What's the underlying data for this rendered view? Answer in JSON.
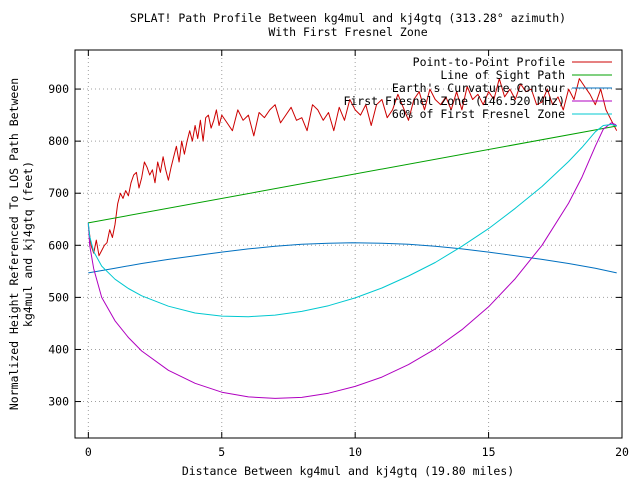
{
  "chart_data": {
    "type": "line",
    "title": "SPLAT! Path Profile Between kg4mul and kj4gtq (313.28° azimuth)",
    "subtitle": "With First Fresnel Zone",
    "xlabel": "Distance Between kg4mul and kj4gtq (19.80 miles)",
    "ylabel": "Normalized Height Referenced To LOS Path Between kg4mul and kj4gtq (feet)",
    "ylabel_lines": [
      "Normalized Height Referenced To LOS Path Between",
      "kg4mul and kj4gtq (feet)"
    ],
    "xlim": [
      -0.5,
      20
    ],
    "ylim": [
      230,
      975
    ],
    "xticks": [
      0,
      5,
      10,
      15,
      20
    ],
    "yticks": [
      300,
      400,
      500,
      600,
      700,
      800,
      900
    ],
    "grid": true,
    "legend_position": "top-right",
    "series": [
      {
        "name": "Point-to-Point Profile",
        "color": "#cc0000",
        "x": [
          0,
          0.1,
          0.2,
          0.3,
          0.4,
          0.5,
          0.6,
          0.7,
          0.8,
          0.9,
          1.0,
          1.1,
          1.2,
          1.3,
          1.4,
          1.5,
          1.6,
          1.7,
          1.8,
          1.9,
          2.0,
          2.1,
          2.2,
          2.3,
          2.4,
          2.5,
          2.6,
          2.7,
          2.8,
          2.9,
          3.0,
          3.1,
          3.2,
          3.3,
          3.4,
          3.5,
          3.6,
          3.7,
          3.8,
          3.9,
          4.0,
          4.1,
          4.2,
          4.3,
          4.4,
          4.5,
          4.6,
          4.7,
          4.8,
          4.9,
          5.0,
          5.2,
          5.4,
          5.6,
          5.8,
          6.0,
          6.2,
          6.4,
          6.6,
          6.8,
          7.0,
          7.2,
          7.4,
          7.6,
          7.8,
          8.0,
          8.2,
          8.4,
          8.6,
          8.8,
          9.0,
          9.2,
          9.4,
          9.6,
          9.8,
          10.0,
          10.2,
          10.4,
          10.6,
          10.8,
          11.0,
          11.2,
          11.4,
          11.6,
          11.8,
          12.0,
          12.2,
          12.4,
          12.6,
          12.8,
          13.0,
          13.2,
          13.4,
          13.6,
          13.8,
          14.0,
          14.2,
          14.4,
          14.6,
          14.8,
          15.0,
          15.2,
          15.4,
          15.6,
          15.8,
          16.0,
          16.2,
          16.4,
          16.6,
          16.8,
          17.0,
          17.2,
          17.4,
          17.6,
          17.8,
          18.0,
          18.2,
          18.4,
          18.6,
          18.8,
          19.0,
          19.2,
          19.4,
          19.6,
          19.8
        ],
        "y": [
          640,
          600,
          585,
          610,
          580,
          590,
          600,
          605,
          630,
          615,
          640,
          680,
          700,
          690,
          705,
          695,
          720,
          735,
          740,
          710,
          730,
          760,
          750,
          735,
          745,
          720,
          760,
          740,
          770,
          745,
          725,
          750,
          770,
          790,
          760,
          800,
          775,
          800,
          820,
          800,
          830,
          805,
          840,
          800,
          845,
          850,
          825,
          840,
          860,
          830,
          850,
          835,
          820,
          860,
          840,
          850,
          810,
          855,
          845,
          860,
          870,
          835,
          850,
          865,
          840,
          845,
          820,
          870,
          860,
          840,
          855,
          820,
          865,
          840,
          880,
          860,
          850,
          870,
          830,
          870,
          880,
          845,
          860,
          890,
          865,
          840,
          880,
          895,
          860,
          900,
          880,
          870,
          885,
          860,
          895,
          860,
          905,
          880,
          890,
          870,
          895,
          880,
          920,
          885,
          900,
          880,
          910,
          895,
          900,
          870,
          875,
          900,
          870,
          885,
          860,
          900,
          880,
          920,
          905,
          890,
          870,
          900,
          860,
          840,
          820
        ]
      },
      {
        "name": "Line of Sight Path",
        "color": "#00a000",
        "x": [
          0,
          19.8
        ],
        "y": [
          643,
          829
        ]
      },
      {
        "name": "Earth's Curvature Contour",
        "color": "#0070c0",
        "x": [
          0,
          1,
          2,
          3,
          4,
          5,
          6,
          7,
          8,
          9,
          9.9,
          11,
          12,
          13,
          14,
          15,
          16,
          17,
          18,
          19,
          19.8
        ],
        "y": [
          547,
          556,
          565,
          573,
          580,
          587,
          593,
          598,
          602,
          604,
          605,
          604,
          602,
          598,
          593,
          587,
          580,
          573,
          565,
          556,
          547
        ]
      },
      {
        "name": "First Fresnel Zone (146.520 MHz)",
        "color": "#b000c0",
        "x": [
          0,
          0.05,
          0.2,
          0.5,
          1,
          1.5,
          2,
          3,
          4,
          5,
          6,
          7,
          8,
          9,
          10,
          11,
          12,
          13,
          14,
          15,
          16,
          17,
          18,
          18.5,
          19,
          19.3,
          19.6,
          19.75,
          19.8
        ],
        "y": [
          643,
          600,
          555,
          500,
          455,
          423,
          397,
          360,
          335,
          318,
          309,
          306,
          308,
          316,
          329,
          347,
          371,
          401,
          438,
          482,
          536,
          600,
          681,
          731,
          790,
          823,
          835,
          832,
          829
        ]
      },
      {
        "name": "60% of First Fresnel Zone",
        "color": "#00c8d0",
        "x": [
          0,
          0.05,
          0.2,
          0.5,
          1,
          1.5,
          2,
          3,
          4,
          5,
          6,
          7,
          8,
          9,
          10,
          11,
          12,
          13,
          14,
          15,
          16,
          17,
          18,
          18.5,
          19,
          19.3,
          19.6,
          19.75,
          19.8
        ],
        "y": [
          643,
          617,
          588,
          560,
          535,
          517,
          503,
          483,
          470,
          464,
          463,
          466,
          473,
          484,
          499,
          518,
          541,
          567,
          598,
          632,
          671,
          713,
          761,
          788,
          818,
          830,
          832,
          830,
          829
        ]
      }
    ]
  }
}
